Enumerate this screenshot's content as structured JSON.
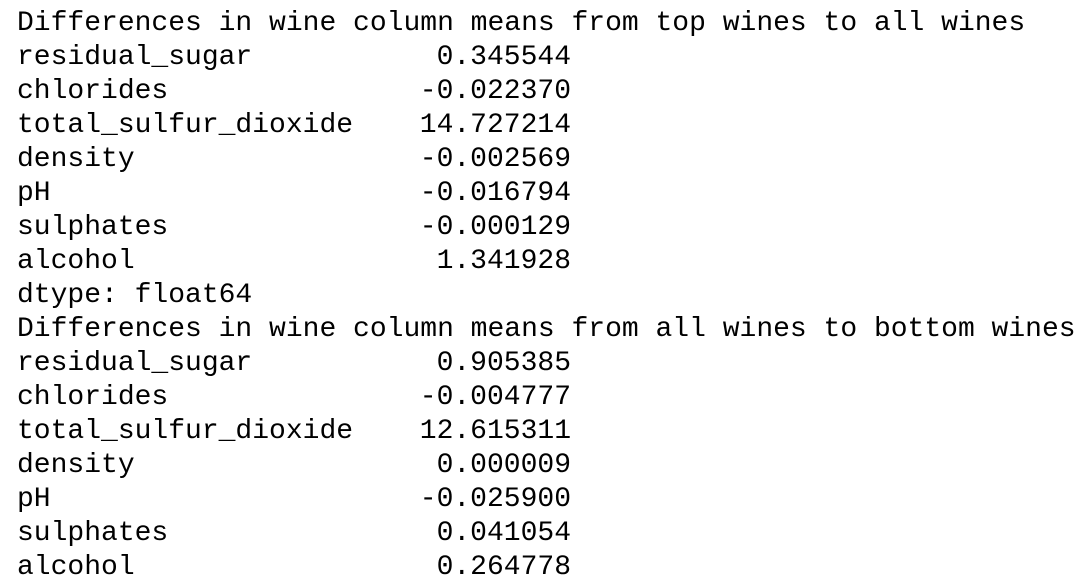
{
  "blocks": [
    {
      "title": "Differences in wine column means from top wines to all wines",
      "rows": [
        {
          "name": "residual_sugar",
          "value": "0.345544"
        },
        {
          "name": "chlorides",
          "value": "-0.022370"
        },
        {
          "name": "total_sulfur_dioxide",
          "value": "14.727214"
        },
        {
          "name": "density",
          "value": "-0.002569"
        },
        {
          "name": "pH",
          "value": "-0.016794"
        },
        {
          "name": "sulphates",
          "value": "-0.000129"
        },
        {
          "name": "alcohol",
          "value": "1.341928"
        }
      ],
      "footer": "dtype: float64"
    },
    {
      "title": "Differences in wine column means from all wines to bottom wines",
      "rows": [
        {
          "name": "residual_sugar",
          "value": "0.905385"
        },
        {
          "name": "chlorides",
          "value": "-0.004777"
        },
        {
          "name": "total_sulfur_dioxide",
          "value": "12.615311"
        },
        {
          "name": "density",
          "value": "0.000009"
        },
        {
          "name": "pH",
          "value": "-0.025900"
        },
        {
          "name": "sulphates",
          "value": "0.041054"
        },
        {
          "name": "alcohol",
          "value": "0.264778"
        }
      ]
    }
  ]
}
